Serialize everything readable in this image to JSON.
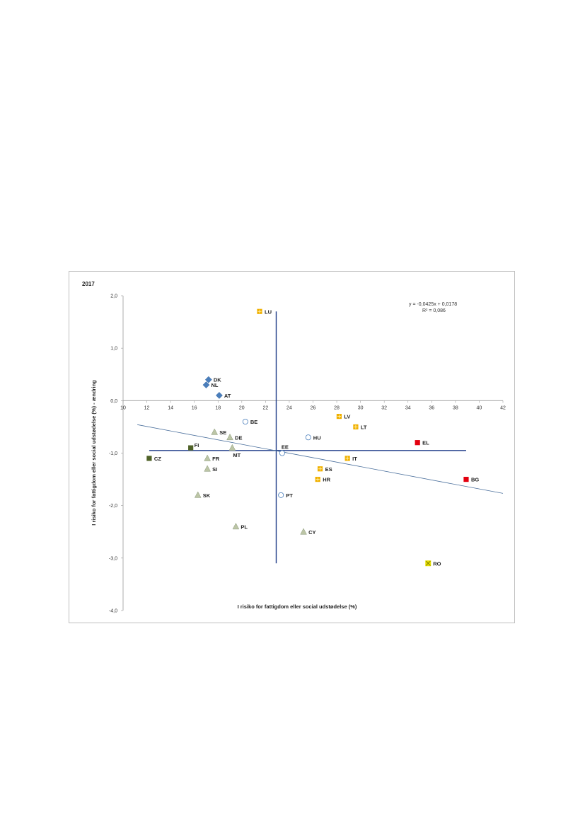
{
  "chart_data": {
    "type": "scatter",
    "title": "2017",
    "xlabel": "I risiko for fattigdom eller social udstødelse (%)",
    "ylabel": "I risiko for fattigdom eller social udstødelse (%) - ændring",
    "xlim": [
      10,
      42
    ],
    "ylim": [
      -4,
      2
    ],
    "x_ticks": [
      "10",
      "12",
      "14",
      "16",
      "18",
      "20",
      "22",
      "24",
      "26",
      "28",
      "30",
      "32",
      "34",
      "36",
      "38",
      "40",
      "42"
    ],
    "y_ticks": [
      "2,0",
      "1,0",
      "0,0",
      "-1,0",
      "-2,0",
      "-3,0",
      "-4,0"
    ],
    "trendline": {
      "equation": "y = -0,0425x + 0,0178",
      "r2": "R² = 0,086",
      "slope": -0.0425,
      "intercept": 0.0178,
      "x_from": 11.2,
      "x_to": 42
    },
    "reference_lines": {
      "x_value": 22.9,
      "x_span": [
        -3.1,
        1.7
      ],
      "y_value": -0.95,
      "y_span": [
        12.2,
        38.9
      ],
      "color": "#1f3c88"
    },
    "points": [
      {
        "label": "LU",
        "x": 21.5,
        "y": 1.7,
        "marker": "square-plus",
        "color": "#f0b000"
      },
      {
        "label": "DK",
        "x": 17.2,
        "y": 0.4,
        "marker": "diamond",
        "color": "#4a7ebb"
      },
      {
        "label": "NL",
        "x": 17.0,
        "y": 0.3,
        "marker": "diamond",
        "color": "#4a7ebb"
      },
      {
        "label": "AT",
        "x": 18.1,
        "y": 0.1,
        "marker": "diamond",
        "color": "#4a7ebb"
      },
      {
        "label": "BE",
        "x": 20.3,
        "y": -0.4,
        "marker": "circle",
        "color": "#4a7ebb"
      },
      {
        "label": "LV",
        "x": 28.2,
        "y": -0.3,
        "marker": "square-plus",
        "color": "#f0b000"
      },
      {
        "label": "LT",
        "x": 29.6,
        "y": -0.5,
        "marker": "square-plus",
        "color": "#f0b000"
      },
      {
        "label": "SE",
        "x": 17.7,
        "y": -0.6,
        "marker": "triangle",
        "color": "#bcc5a6"
      },
      {
        "label": "DE",
        "x": 19.0,
        "y": -0.7,
        "marker": "triangle",
        "color": "#bcc5a6"
      },
      {
        "label": "HU",
        "x": 25.6,
        "y": -0.7,
        "marker": "circle",
        "color": "#4a7ebb"
      },
      {
        "label": "EL",
        "x": 34.8,
        "y": -0.8,
        "marker": "square",
        "color": "#e3000f"
      },
      {
        "label": "FI",
        "x": 15.7,
        "y": -0.9,
        "marker": "square",
        "color": "#4f6228"
      },
      {
        "label": "MT",
        "x": 19.2,
        "y": -0.9,
        "marker": "triangle",
        "color": "#bcc5a6"
      },
      {
        "label": "EE",
        "x": 23.4,
        "y": -1.0,
        "marker": "circle",
        "color": "#4a7ebb"
      },
      {
        "label": "CZ",
        "x": 12.2,
        "y": -1.1,
        "marker": "square",
        "color": "#4f6228"
      },
      {
        "label": "FR",
        "x": 17.1,
        "y": -1.1,
        "marker": "triangle",
        "color": "#bcc5a6"
      },
      {
        "label": "IT",
        "x": 28.9,
        "y": -1.1,
        "marker": "square-plus",
        "color": "#f0b000"
      },
      {
        "label": "SI",
        "x": 17.1,
        "y": -1.3,
        "marker": "triangle",
        "color": "#bcc5a6"
      },
      {
        "label": "ES",
        "x": 26.6,
        "y": -1.3,
        "marker": "square-plus",
        "color": "#f0b000"
      },
      {
        "label": "BG",
        "x": 38.9,
        "y": -1.5,
        "marker": "square",
        "color": "#e3000f"
      },
      {
        "label": "HR",
        "x": 26.4,
        "y": -1.5,
        "marker": "square-plus",
        "color": "#f0b000"
      },
      {
        "label": "SK",
        "x": 16.3,
        "y": -1.8,
        "marker": "triangle",
        "color": "#bcc5a6"
      },
      {
        "label": "PT",
        "x": 23.3,
        "y": -1.8,
        "marker": "circle",
        "color": "#4a7ebb"
      },
      {
        "label": "PL",
        "x": 19.5,
        "y": -2.4,
        "marker": "triangle",
        "color": "#bcc5a6"
      },
      {
        "label": "CY",
        "x": 25.2,
        "y": -2.5,
        "marker": "triangle",
        "color": "#bcc5a6"
      },
      {
        "label": "RO",
        "x": 35.7,
        "y": -3.1,
        "marker": "square-x",
        "color": "#e8e000"
      }
    ]
  }
}
